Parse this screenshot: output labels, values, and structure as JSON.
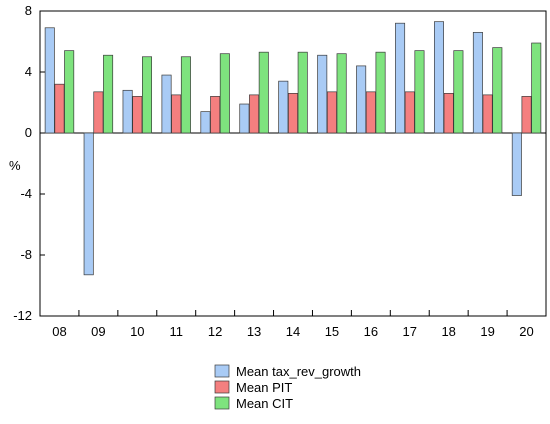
{
  "chart_data": {
    "type": "bar",
    "title": "",
    "xlabel": "",
    "ylabel": "%",
    "ylim": [
      -12,
      8
    ],
    "yticks": [
      -12,
      -8,
      -4,
      0,
      4,
      8
    ],
    "grid": false,
    "legend_position": "bottom-center",
    "categories": [
      "08",
      "09",
      "10",
      "11",
      "12",
      "13",
      "14",
      "15",
      "16",
      "17",
      "18",
      "19",
      "20"
    ],
    "series": [
      {
        "name": "Mean tax_rev_growth",
        "color": "#a9cbf5",
        "values": [
          6.9,
          -9.3,
          2.8,
          3.8,
          1.4,
          1.9,
          3.4,
          5.1,
          4.4,
          7.2,
          7.3,
          6.6,
          -4.1
        ]
      },
      {
        "name": "Mean PIT",
        "color": "#f47f7f",
        "values": [
          3.2,
          2.7,
          2.4,
          2.5,
          2.4,
          2.5,
          2.6,
          2.7,
          2.7,
          2.7,
          2.6,
          2.5,
          2.4
        ]
      },
      {
        "name": "Mean CIT",
        "color": "#7ee37e",
        "values": [
          5.4,
          5.1,
          5.0,
          5.0,
          5.2,
          5.3,
          5.3,
          5.2,
          5.3,
          5.4,
          5.4,
          5.6,
          5.9
        ]
      }
    ]
  }
}
